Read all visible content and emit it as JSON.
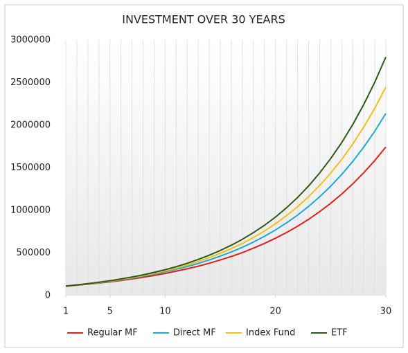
{
  "chart_data": {
    "type": "line",
    "title": "INVESTMENT OVER 30 YEARS",
    "x": [
      1,
      2,
      3,
      4,
      5,
      6,
      7,
      8,
      9,
      10,
      11,
      12,
      13,
      14,
      15,
      16,
      17,
      18,
      19,
      20,
      21,
      22,
      23,
      24,
      25,
      26,
      27,
      28,
      29,
      30
    ],
    "xlim": [
      1,
      30
    ],
    "xticks": [
      1,
      5,
      10,
      20,
      30
    ],
    "ylim": [
      0,
      3000000
    ],
    "yticks": [
      0,
      500000,
      1000000,
      1500000,
      2000000,
      2500000,
      3000000
    ],
    "xgrid": true,
    "legend": "bottom",
    "series": [
      {
        "name": "Regular MF",
        "color": "#e0201b",
        "values": [
          110000,
          121000,
          133000,
          146000,
          161000,
          177000,
          195000,
          214000,
          236000,
          259000,
          285000,
          314000,
          345000,
          380000,
          418000,
          459000,
          505000,
          556000,
          612000,
          673000,
          740000,
          814000,
          895000,
          985000,
          1083000,
          1192000,
          1311000,
          1442000,
          1586000,
          1745000
        ]
      },
      {
        "name": "Direct MF",
        "color": "#1ea8d8",
        "values": [
          111000,
          123000,
          136000,
          150000,
          167000,
          185000,
          204000,
          226000,
          251000,
          278000,
          307000,
          341000,
          377000,
          418000,
          463000,
          512000,
          567000,
          628000,
          696000,
          771000,
          854000,
          945000,
          1047000,
          1159000,
          1284000,
          1422000,
          1575000,
          1744000,
          1932000,
          2139000
        ]
      },
      {
        "name": "Index Fund",
        "color": "#f2c018",
        "values": [
          111000,
          124000,
          138000,
          153000,
          170000,
          190000,
          211000,
          235000,
          261000,
          290000,
          323000,
          359000,
          400000,
          445000,
          495000,
          551000,
          612000,
          681000,
          758000,
          843000,
          938000,
          1044000,
          1161000,
          1292000,
          1437000,
          1599000,
          1779000,
          1979000,
          2201000,
          2449000
        ]
      },
      {
        "name": "ETF",
        "color": "#2a5a15",
        "values": [
          112000,
          125000,
          140000,
          156000,
          174000,
          195000,
          218000,
          243000,
          272000,
          304000,
          339000,
          379000,
          424000,
          474000,
          529000,
          592000,
          661000,
          739000,
          825000,
          922000,
          1031000,
          1152000,
          1287000,
          1439000,
          1608000,
          1797000,
          2008000,
          2244000,
          2507000,
          2802000
        ]
      }
    ]
  }
}
